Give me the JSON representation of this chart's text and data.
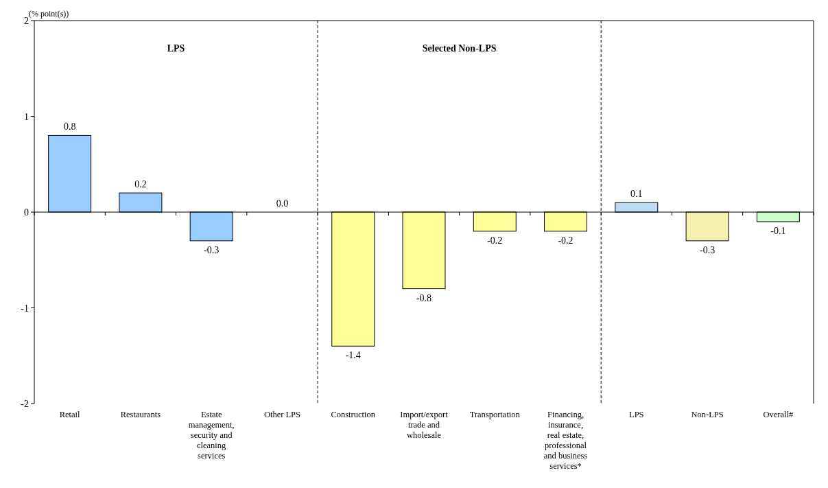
{
  "chart_data": {
    "type": "bar",
    "ylabel": "(% point(s))",
    "categories": [
      "Retail",
      "Restaurants",
      "Estate management, security and cleaning services",
      "Other LPS",
      "Construction",
      "Import/export trade and wholesale",
      "Transportation",
      "Financing, insurance, real estate, professional and business services*",
      "LPS",
      "Non-LPS",
      "Overall#"
    ],
    "values": [
      0.8,
      0.2,
      -0.3,
      0,
      -1.4,
      -0.8,
      -0.2,
      -0.2,
      0.1,
      -0.3,
      -0.1
    ],
    "colors": [
      "#99ccff",
      "#99ccff",
      "#99ccff",
      "#99ccff",
      "#ffff99",
      "#ffff99",
      "#ffff99",
      "#ffff99",
      "#b8dcf5",
      "#f5f0b0",
      "#ccffcc"
    ],
    "value_labels": [
      "0.8",
      "0.2",
      "-0.3",
      "0.0",
      "-1.4",
      "-0.8",
      "-0.2",
      "-0.2",
      "0.1",
      "-0.3",
      "-0.1"
    ],
    "ylim": [
      -2,
      2
    ],
    "yticks": [
      -2,
      -1,
      0,
      1,
      2
    ],
    "grid": false,
    "annotations": [
      "LPS",
      "Selected Non-LPS"
    ]
  }
}
